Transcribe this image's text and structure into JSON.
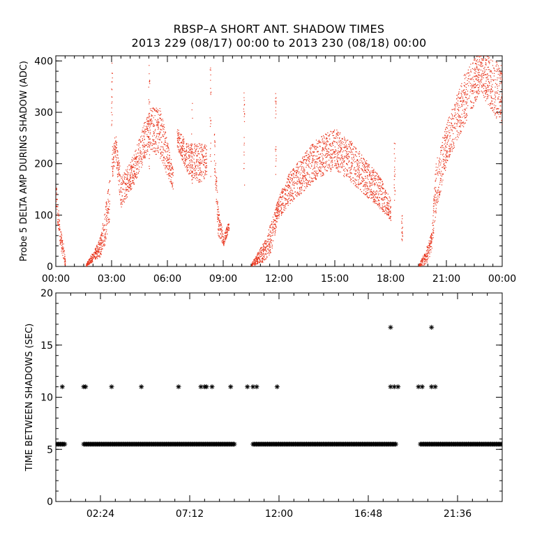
{
  "title": {
    "line1": "RBSP–A SHORT ANT. SHADOW TIMES",
    "line2": "2013 229 (08/17) 00:00 to 2013 230 (08/18) 00:00"
  },
  "colors": {
    "top_series": "#e8321a",
    "bottom_series": "#000000",
    "axes": "#000000"
  },
  "chart_data": [
    {
      "type": "scatter",
      "ylabel": "Probe 5 DELTA AMP DURING SHADOW (ADC)",
      "xlabel": "",
      "xlim_hours": [
        0,
        24
      ],
      "ylim": [
        0,
        410
      ],
      "xticks": [
        {
          "label": "00:00",
          "hour": 0
        },
        {
          "label": "03:00",
          "hour": 3
        },
        {
          "label": "06:00",
          "hour": 6
        },
        {
          "label": "09:00",
          "hour": 9
        },
        {
          "label": "12:00",
          "hour": 12
        },
        {
          "label": "15:00",
          "hour": 15
        },
        {
          "label": "18:00",
          "hour": 18
        },
        {
          "label": "21:00",
          "hour": 21
        },
        {
          "label": "00:00",
          "hour": 24
        }
      ],
      "yticks": [
        0,
        100,
        200,
        300,
        400
      ],
      "marker": "dot",
      "series": [
        {
          "segments": [
            {
              "band": [
                [
                  0.0,
                  140,
                  25
                ],
                [
                  0.2,
                  60,
                  20
                ],
                [
                  0.4,
                  30,
                  15
                ],
                [
                  0.5,
                  5,
                  5
                ]
              ]
            },
            {
              "band": [
                [
                  1.6,
                  2,
                  2
                ],
                [
                  2.0,
                  20,
                  10
                ],
                [
                  2.4,
                  40,
                  20
                ],
                [
                  2.7,
                  90,
                  40
                ],
                [
                  2.9,
                  140,
                  40
                ]
              ]
            },
            {
              "band": [
                [
                  3.0,
                  200,
                  30
                ],
                [
                  3.2,
                  230,
                  30
                ],
                [
                  3.5,
                  145,
                  30
                ],
                [
                  4.2,
                  190,
                  30
                ],
                [
                  5.0,
                  270,
                  40
                ],
                [
                  5.6,
                  260,
                  50
                ],
                [
                  6.3,
                  170,
                  20
                ]
              ]
            },
            {
              "band": [
                [
                  6.5,
                  250,
                  20
                ],
                [
                  7.1,
                  210,
                  30
                ],
                [
                  7.8,
                  200,
                  40
                ],
                [
                  8.1,
                  210,
                  30
                ]
              ]
            },
            {
              "band": [
                [
                  8.5,
                  230,
                  40
                ],
                [
                  8.7,
                  90,
                  30
                ],
                [
                  9.0,
                  50,
                  10
                ],
                [
                  9.3,
                  80,
                  10
                ]
              ]
            },
            {
              "band": [
                [
                  10.5,
                  3,
                  3
                ],
                [
                  11.2,
                  30,
                  20
                ],
                [
                  11.6,
                  60,
                  30
                ],
                [
                  11.9,
                  110,
                  20
                ],
                [
                  12.5,
                  150,
                  30
                ],
                [
                  14.0,
                  210,
                  40
                ],
                [
                  15.0,
                  230,
                  40
                ],
                [
                  16.0,
                  200,
                  40
                ],
                [
                  17.5,
                  140,
                  30
                ],
                [
                  18.0,
                  110,
                  20
                ]
              ]
            },
            {
              "band": [
                [
                  19.5,
                  2,
                  2
                ],
                [
                  19.9,
                  20,
                  15
                ],
                [
                  20.2,
                  50,
                  20
                ],
                [
                  20.4,
                  150,
                  50
                ],
                [
                  21.0,
                  240,
                  40
                ],
                [
                  22.0,
                  330,
                  50
                ],
                [
                  22.8,
                  380,
                  40
                ],
                [
                  24.0,
                  330,
                  60
                ]
              ]
            }
          ],
          "spikes": [
            {
              "hour": 3.0,
              "value": 400
            },
            {
              "hour": 5.0,
              "value": 400
            },
            {
              "hour": 7.3,
              "value": 360
            },
            {
              "hour": 8.3,
              "value": 390
            },
            {
              "hour": 10.1,
              "value": 340
            },
            {
              "hour": 11.8,
              "value": 340
            },
            {
              "hour": 18.2,
              "value": 250
            },
            {
              "hour": 18.6,
              "value": 100
            }
          ]
        }
      ]
    },
    {
      "type": "scatter",
      "ylabel": "TIME BETWEEN SHADOWS (SEC)",
      "xlabel": "",
      "xlim_hours": [
        0,
        24
      ],
      "ylim": [
        0,
        20
      ],
      "xticks": [
        {
          "label": "02:24",
          "hour": 2.4
        },
        {
          "label": "07:12",
          "hour": 7.2
        },
        {
          "label": "12:00",
          "hour": 12.0
        },
        {
          "label": "16:48",
          "hour": 16.8
        },
        {
          "label": "21:36",
          "hour": 21.6
        }
      ],
      "yticks": [
        0,
        5,
        10,
        15,
        20
      ],
      "marker": "asterisk",
      "series": [
        {
          "baseline_value": 5.5,
          "baseline_ranges": [
            [
              0.0,
              0.5
            ],
            [
              1.5,
              9.6
            ],
            [
              10.6,
              18.3
            ],
            [
              19.6,
              24.0
            ]
          ],
          "points": [
            {
              "hour": 0.35,
              "value": 11
            },
            {
              "hour": 1.5,
              "value": 11
            },
            {
              "hour": 1.6,
              "value": 11
            },
            {
              "hour": 3.0,
              "value": 11
            },
            {
              "hour": 4.6,
              "value": 11
            },
            {
              "hour": 6.6,
              "value": 11
            },
            {
              "hour": 7.8,
              "value": 11
            },
            {
              "hour": 8.0,
              "value": 11
            },
            {
              "hour": 8.1,
              "value": 11
            },
            {
              "hour": 8.4,
              "value": 11
            },
            {
              "hour": 9.4,
              "value": 11
            },
            {
              "hour": 10.3,
              "value": 11
            },
            {
              "hour": 10.6,
              "value": 11
            },
            {
              "hour": 10.8,
              "value": 11
            },
            {
              "hour": 11.9,
              "value": 11
            },
            {
              "hour": 18.0,
              "value": 11
            },
            {
              "hour": 18.2,
              "value": 11
            },
            {
              "hour": 18.4,
              "value": 11
            },
            {
              "hour": 19.5,
              "value": 11
            },
            {
              "hour": 19.7,
              "value": 11
            },
            {
              "hour": 20.2,
              "value": 11
            },
            {
              "hour": 20.4,
              "value": 11
            },
            {
              "hour": 18.0,
              "value": 16.7
            },
            {
              "hour": 20.2,
              "value": 16.7
            }
          ]
        }
      ]
    }
  ]
}
